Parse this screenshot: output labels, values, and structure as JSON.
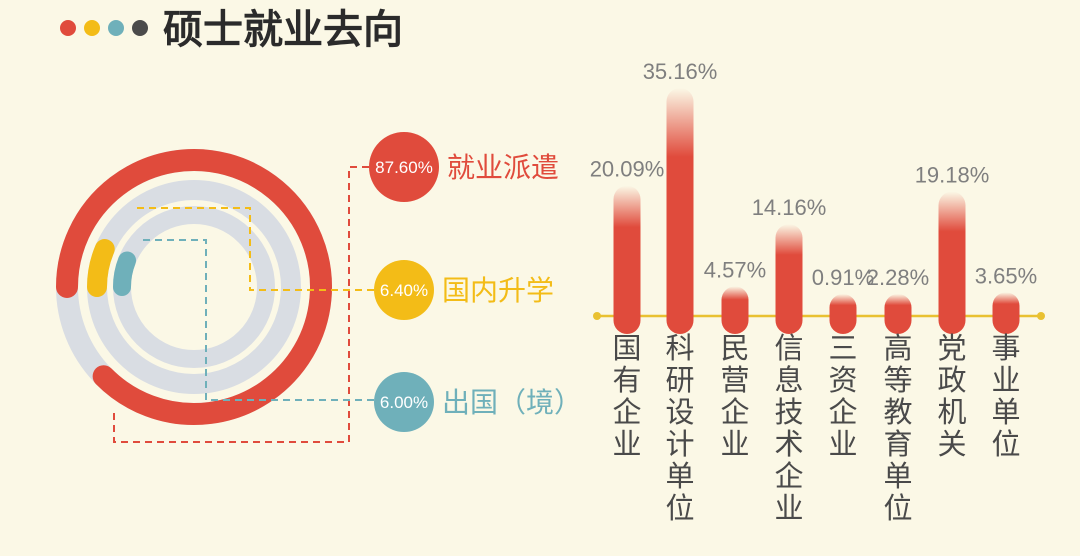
{
  "title": "硕士就业去向",
  "colors": {
    "red": "#E04B3C",
    "yellow": "#F3BC17",
    "teal": "#6FB0BA",
    "dark": "#4B4B4B",
    "track": "#D9DDE3",
    "axis": "#E9C131"
  },
  "chart_data": [
    {
      "type": "donut",
      "series": [
        {
          "name": "就业派遣",
          "label": "87.60%",
          "value": 87.6,
          "color": "#E04B3C"
        },
        {
          "name": "国内升学",
          "label": "6.40%",
          "value": 6.4,
          "color": "#F3BC17"
        },
        {
          "name": "出国（境）",
          "label": "6.00%",
          "value": 6.0,
          "color": "#6FB0BA"
        }
      ]
    },
    {
      "type": "bar",
      "categories": [
        "国有企业",
        "科研设计单位",
        "民营企业",
        "信息技术企业",
        "三资企业",
        "高等教育单位",
        "党政机关",
        "事业单位"
      ],
      "values": [
        20.09,
        35.16,
        4.57,
        14.16,
        0.91,
        2.28,
        19.18,
        3.65
      ],
      "labels": [
        "20.09%",
        "35.16%",
        "4.57%",
        "14.16%",
        "0.91%",
        "2.28%",
        "19.18%",
        "3.65%"
      ]
    }
  ]
}
